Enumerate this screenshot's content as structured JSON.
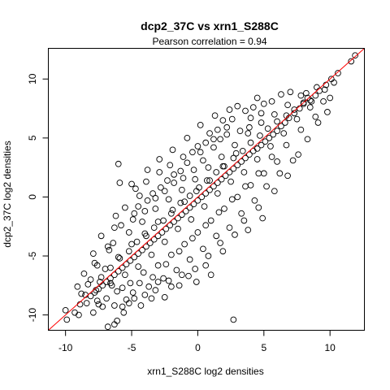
{
  "chart_data": {
    "type": "scatter",
    "title": "dcp2_37C vs xrn1_S288C",
    "subtitle": "Pearson correlation =  0.94",
    "xlabel": "xrn1_S288C log2 densities",
    "ylabel": "dcp2_37C log2 densities",
    "xlim": [
      -11.3,
      12.6
    ],
    "ylim": [
      -11.3,
      12.6
    ],
    "x_ticks": [
      -10,
      -5,
      0,
      5,
      10
    ],
    "y_ticks": [
      -10,
      -5,
      0,
      5,
      10
    ],
    "grid": false,
    "legend": "none",
    "point_color": "#000000",
    "fit_line": {
      "slope": 1.0,
      "intercept": 0.0,
      "color": "#ff0000"
    },
    "series": [
      {
        "points": [
          [
            11.9,
            12.0
          ],
          [
            11.6,
            11.5
          ],
          [
            10.6,
            10.5
          ],
          [
            10.1,
            10.0
          ],
          [
            9.7,
            9.5
          ],
          [
            9.2,
            9.0
          ],
          [
            8.9,
            8.6
          ],
          [
            8.5,
            8.2
          ],
          [
            8.3,
            8.4
          ],
          [
            8.0,
            8.0
          ],
          [
            7.7,
            7.5
          ],
          [
            7.3,
            7.1
          ],
          [
            6.9,
            6.7
          ],
          [
            6.6,
            6.3
          ],
          [
            6.3,
            6.0
          ],
          [
            6.0,
            5.6
          ],
          [
            5.7,
            5.3
          ],
          [
            5.4,
            5.0
          ],
          [
            5.1,
            4.7
          ],
          [
            4.8,
            4.4
          ],
          [
            4.5,
            4.1
          ],
          [
            4.2,
            3.9
          ],
          [
            3.9,
            3.6
          ],
          [
            3.6,
            3.3
          ],
          [
            3.3,
            3.0
          ],
          [
            3.0,
            2.7
          ],
          [
            2.7,
            2.4
          ],
          [
            2.4,
            2.1
          ],
          [
            2.1,
            1.8
          ],
          [
            1.8,
            1.5
          ],
          [
            1.5,
            1.2
          ],
          [
            1.2,
            0.9
          ],
          [
            0.9,
            0.6
          ],
          [
            0.6,
            0.3
          ],
          [
            0.3,
            0.0
          ],
          [
            0.0,
            -0.3
          ],
          [
            -0.3,
            -0.6
          ],
          [
            -0.6,
            -0.9
          ],
          [
            -0.9,
            -1.2
          ],
          [
            -1.2,
            -1.5
          ],
          [
            -1.5,
            -1.8
          ],
          [
            -1.8,
            -2.1
          ],
          [
            -2.1,
            -2.4
          ],
          [
            -2.4,
            -2.7
          ],
          [
            -2.7,
            -3.0
          ],
          [
            -3.0,
            -3.3
          ],
          [
            -3.3,
            -3.6
          ],
          [
            -3.6,
            -3.9
          ],
          [
            -3.9,
            -4.2
          ],
          [
            -4.2,
            -4.5
          ],
          [
            -4.5,
            -4.8
          ],
          [
            -4.8,
            -5.1
          ],
          [
            -5.1,
            -5.4
          ],
          [
            -5.4,
            -5.7
          ],
          [
            -5.7,
            -6.0
          ],
          [
            -6.0,
            -6.3
          ],
          [
            -6.3,
            -6.6
          ],
          [
            -6.6,
            -6.9
          ],
          [
            -6.9,
            -7.2
          ],
          [
            -7.2,
            -7.5
          ],
          [
            -7.5,
            -7.8
          ],
          [
            -7.8,
            -8.1
          ],
          [
            -8.1,
            -8.4
          ],
          [
            -8.5,
            -8.3
          ],
          [
            -8.9,
            -9.1
          ],
          [
            -9.3,
            -9.8
          ],
          [
            -9.9,
            -10.4
          ],
          [
            -10.0,
            -9.6
          ],
          [
            -9.0,
            -10.0
          ],
          [
            -8.8,
            -8.2
          ],
          [
            -8.4,
            -9.0
          ],
          [
            -7.9,
            -9.8
          ],
          [
            -7.6,
            -8.8
          ],
          [
            -7.2,
            -9.3
          ],
          [
            -6.8,
            -11.0
          ],
          [
            -6.3,
            -10.8
          ],
          [
            -6.1,
            -10.5
          ],
          [
            -5.6,
            -9.8
          ],
          [
            -5.7,
            -9.3
          ],
          [
            -5.2,
            -9.0
          ],
          [
            -4.8,
            -8.6
          ],
          [
            -4.3,
            -9.2
          ],
          [
            -3.5,
            -8.6
          ],
          [
            -2.5,
            -8.5
          ],
          [
            -2.0,
            -7.6
          ],
          [
            -0.1,
            -7.2
          ],
          [
            2.7,
            -10.4
          ],
          [
            -6.0,
            2.8
          ],
          [
            -5.9,
            1.2
          ],
          [
            -7.9,
            -4.8
          ],
          [
            -7.6,
            -5.8
          ],
          [
            -6.4,
            -3.9
          ],
          [
            -6.7,
            -4.5
          ],
          [
            -4.9,
            -1.9
          ],
          [
            -4.5,
            -0.8
          ],
          [
            -4.0,
            -1.2
          ],
          [
            -3.2,
            -0.1
          ],
          [
            -2.5,
            0.5
          ],
          [
            -1.8,
            1.2
          ],
          [
            -1.1,
            1.6
          ],
          [
            -0.3,
            2.3
          ],
          [
            0.4,
            3.1
          ],
          [
            1.2,
            4.2
          ],
          [
            1.7,
            4.9
          ],
          [
            2.2,
            5.3
          ],
          [
            3.2,
            5.6
          ],
          [
            4.0,
            6.7
          ],
          [
            4.8,
            7.1
          ],
          [
            3.9,
            5.9
          ],
          [
            2.9,
            3.7
          ],
          [
            1.9,
            2.6
          ],
          [
            0.9,
            1.4
          ],
          [
            -0.1,
            0.5
          ],
          [
            -1.0,
            -0.4
          ],
          [
            -2.0,
            -1.4
          ],
          [
            -3.0,
            -2.1
          ],
          [
            -4.0,
            -3.1
          ],
          [
            -5.0,
            -4.0
          ],
          [
            -6.0,
            -5.1
          ],
          [
            -7.0,
            -6.1
          ],
          [
            -6.5,
            -7.5
          ],
          [
            -5.5,
            -6.6
          ],
          [
            -4.5,
            -5.9
          ],
          [
            -3.5,
            -4.9
          ],
          [
            -2.5,
            -3.8
          ],
          [
            -1.5,
            -2.7
          ],
          [
            -0.5,
            -1.9
          ],
          [
            0.5,
            -0.8
          ],
          [
            1.5,
            0.3
          ],
          [
            2.5,
            1.3
          ],
          [
            3.5,
            2.1
          ],
          [
            4.5,
            3.2
          ],
          [
            5.5,
            4.3
          ],
          [
            6.5,
            5.4
          ],
          [
            7.5,
            6.6
          ],
          [
            8.5,
            7.6
          ],
          [
            9.5,
            8.1
          ],
          [
            10.0,
            8.4
          ],
          [
            8.9,
            6.8
          ],
          [
            7.8,
            5.7
          ],
          [
            6.7,
            4.4
          ],
          [
            5.6,
            3.4
          ],
          [
            4.6,
            2.0
          ],
          [
            3.6,
            0.9
          ],
          [
            2.6,
            -0.2
          ],
          [
            1.6,
            -1.3
          ],
          [
            0.6,
            -2.4
          ],
          [
            -0.4,
            -3.5
          ],
          [
            -1.4,
            -4.6
          ],
          [
            -2.4,
            -5.7
          ],
          [
            -3.4,
            -6.8
          ],
          [
            -4.4,
            -7.3
          ],
          [
            2.4,
            -2.6
          ],
          [
            3.3,
            -1.4
          ],
          [
            4.3,
            -0.3
          ],
          [
            5.2,
            0.9
          ],
          [
            6.2,
            2.0
          ],
          [
            7.2,
            3.1
          ],
          [
            1.7,
            -3.9
          ],
          [
            0.8,
            -5.0
          ],
          [
            -0.2,
            -6.1
          ],
          [
            -1.2,
            -6.6
          ],
          [
            -2.2,
            -7.1
          ],
          [
            -3.2,
            -7.9
          ],
          [
            -5.8,
            -2.4
          ],
          [
            -4.8,
            -1.4
          ],
          [
            -3.8,
            -0.3
          ],
          [
            -2.8,
            0.8
          ],
          [
            -1.8,
            1.9
          ],
          [
            -0.8,
            2.9
          ],
          [
            0.2,
            3.8
          ],
          [
            1.2,
            4.9
          ],
          [
            2.2,
            5.9
          ],
          [
            -7.3,
            -3.3
          ],
          [
            -6.3,
            -2.6
          ],
          [
            -5.2,
            -3.0
          ],
          [
            -4.2,
            -2.1
          ],
          [
            -3.2,
            -1.0
          ],
          [
            -2.2,
            -0.2
          ],
          [
            -1.2,
            0.6
          ],
          [
            -0.2,
            1.5
          ],
          [
            0.8,
            2.5
          ],
          [
            1.8,
            3.4
          ],
          [
            2.8,
            4.4
          ],
          [
            3.8,
            5.4
          ],
          [
            4.8,
            6.3
          ],
          [
            5.8,
            7.0
          ],
          [
            6.8,
            7.8
          ],
          [
            7.8,
            8.6
          ],
          [
            -8.1,
            -7.0
          ],
          [
            -7.3,
            -6.8
          ],
          [
            -6.6,
            -6.0
          ],
          [
            -5.9,
            -5.2
          ],
          [
            -5.2,
            -4.6
          ],
          [
            -4.6,
            -3.8
          ],
          [
            -3.9,
            -3.3
          ],
          [
            -3.3,
            -2.6
          ],
          [
            -2.6,
            -2.0
          ],
          [
            -1.9,
            -1.1
          ],
          [
            -1.3,
            -0.5
          ],
          [
            -0.6,
            0.1
          ],
          [
            0.1,
            0.8
          ],
          [
            0.7,
            1.4
          ],
          [
            1.4,
            2.1
          ],
          [
            2.0,
            2.6
          ],
          [
            2.7,
            3.3
          ],
          [
            3.4,
            3.9
          ],
          [
            4.0,
            4.6
          ],
          [
            4.7,
            5.2
          ],
          [
            5.3,
            5.8
          ],
          [
            6.0,
            6.4
          ],
          [
            6.7,
            6.9
          ],
          [
            7.3,
            7.4
          ],
          [
            8.0,
            7.9
          ],
          [
            8.6,
            8.1
          ],
          [
            -3.0,
            -5.8
          ],
          [
            -2.0,
            -4.9
          ],
          [
            -1.0,
            -4.0
          ],
          [
            0.0,
            -3.0
          ],
          [
            1.0,
            -2.0
          ],
          [
            2.0,
            -1.0
          ],
          [
            3.0,
            0.0
          ],
          [
            4.0,
            1.0
          ],
          [
            5.0,
            2.0
          ],
          [
            6.0,
            3.0
          ],
          [
            -4.1,
            -6.4
          ],
          [
            -5.1,
            -7.3
          ],
          [
            -6.1,
            -8.0
          ],
          [
            -0.6,
            -5.3
          ],
          [
            0.4,
            -4.4
          ],
          [
            1.4,
            -3.3
          ],
          [
            -1.6,
            -6.2
          ],
          [
            -2.6,
            -6.9
          ],
          [
            -4.9,
            -8.1
          ],
          [
            -5.4,
            -8.7
          ],
          [
            -6.9,
            -8.6
          ],
          [
            -7.7,
            -7.9
          ],
          [
            -8.3,
            -7.4
          ],
          [
            -7.4,
            -7.2
          ],
          [
            -6.6,
            -7.3
          ],
          [
            -5.7,
            -7.7
          ],
          [
            -3.7,
            -7.6
          ],
          [
            -1.4,
            -7.5
          ],
          [
            -0.7,
            -6.7
          ],
          [
            0.6,
            -5.8
          ],
          [
            1.0,
            -6.6
          ],
          [
            -4.7,
            0.7
          ],
          [
            -3.9,
            1.3
          ],
          [
            -2.9,
            2.1
          ],
          [
            -2.1,
            2.7
          ],
          [
            -1.1,
            3.4
          ],
          [
            0.0,
            4.3
          ],
          [
            0.9,
            5.4
          ],
          [
            1.9,
            6.5
          ],
          [
            2.4,
            7.4
          ],
          [
            3.0,
            7.7
          ],
          [
            4.5,
            8.4
          ],
          [
            5.6,
            8.1
          ],
          [
            6.3,
            8.7
          ],
          [
            7.0,
            8.9
          ],
          [
            8.2,
            8.8
          ],
          [
            9.0,
            9.3
          ],
          [
            9.6,
            9.1
          ],
          [
            10.3,
            9.7
          ],
          [
            -8.6,
            -6.5
          ],
          [
            -9.1,
            -7.6
          ],
          [
            -6.3,
            -9.2
          ],
          [
            -7.5,
            -9.1
          ],
          [
            -4.0,
            -8.3
          ],
          [
            -3.0,
            -7.2
          ],
          [
            3.5,
            -2.0
          ],
          [
            4.6,
            -0.9
          ],
          [
            5.8,
            0.5
          ],
          [
            6.8,
            1.8
          ],
          [
            7.6,
            3.6
          ],
          [
            8.3,
            4.9
          ],
          [
            9.1,
            6.3
          ],
          [
            9.8,
            7.2
          ],
          [
            2.8,
            -3.2
          ],
          [
            1.9,
            -4.6
          ],
          [
            3.8,
            -2.8
          ],
          [
            4.9,
            -1.8
          ],
          [
            0.2,
            6.1
          ],
          [
            -0.8,
            5.0
          ],
          [
            -1.9,
            4.0
          ],
          [
            -2.9,
            3.2
          ],
          [
            -3.8,
            2.3
          ],
          [
            -5.0,
            1.1
          ],
          [
            1.3,
            6.9
          ],
          [
            2.6,
            6.6
          ],
          [
            3.6,
            7.3
          ],
          [
            4.2,
            7.6
          ],
          [
            5.0,
            7.9
          ],
          [
            -6.8,
            -4.2
          ],
          [
            -7.8,
            -5.6
          ],
          [
            -5.5,
            -0.9
          ],
          [
            -6.2,
            -1.6
          ],
          [
            -4.4,
            0.1
          ],
          [
            -3.4,
            0.3
          ],
          [
            -2.3,
            1.4
          ],
          [
            -1.3,
            2.2
          ],
          [
            -0.4,
            3.8
          ],
          [
            0.6,
            4.6
          ],
          [
            1.5,
            5.7
          ]
        ]
      }
    ]
  }
}
